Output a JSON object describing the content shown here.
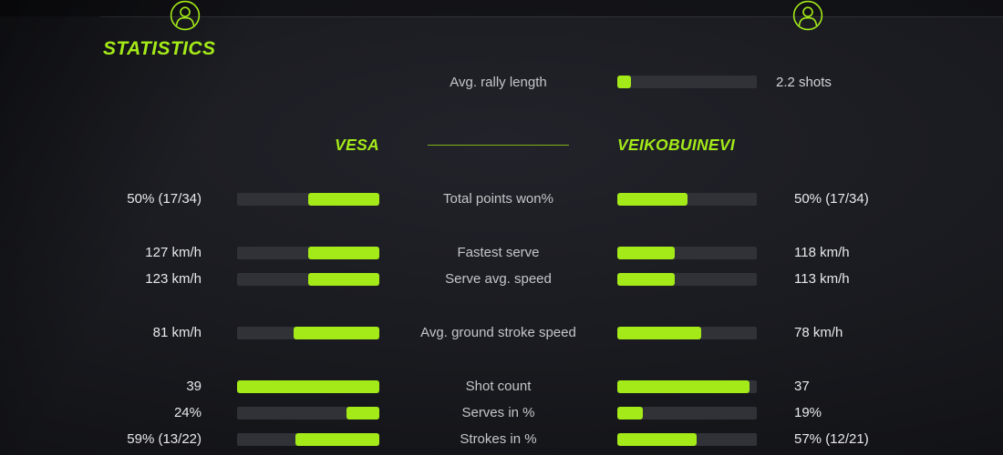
{
  "header": {
    "title": "STATISTICS"
  },
  "rally": {
    "label": "Avg. rally length",
    "value": "2.2 shots",
    "fill_pct": 10
  },
  "players": {
    "left": {
      "name": "VESA"
    },
    "right": {
      "name": "VEIKOBUINEVI"
    }
  },
  "stats": [
    {
      "label": "Total points won%",
      "left_value": "50% (17/34)",
      "right_value": "50% (17/34)",
      "left_pct": 50,
      "right_pct": 50
    },
    {
      "label": "Fastest serve",
      "left_value": "127 km/h",
      "right_value": "118 km/h",
      "left_pct": 50,
      "right_pct": 41
    },
    {
      "label": "Serve avg. speed",
      "left_value": "123 km/h",
      "right_value": "113 km/h",
      "left_pct": 50,
      "right_pct": 41
    },
    {
      "label": "Avg. ground stroke speed",
      "left_value": "81 km/h",
      "right_value": "78 km/h",
      "left_pct": 60,
      "right_pct": 60
    },
    {
      "label": "Shot count",
      "left_value": "39",
      "right_value": "37",
      "left_pct": 100,
      "right_pct": 95
    },
    {
      "label": "Serves in %",
      "left_value": "24%",
      "right_value": "19%",
      "left_pct": 23,
      "right_pct": 18
    },
    {
      "label": "Strokes in %",
      "left_value": "59% (13/22)",
      "right_value": "57% (12/21)",
      "left_pct": 59,
      "right_pct": 57
    }
  ],
  "colors": {
    "accent": "#a4ea18",
    "accent_dim": "#7fb116",
    "bar_track": "#313238",
    "background": "#17181d"
  },
  "icons": {
    "left_avatar": "person-icon",
    "right_avatar": "person-icon"
  }
}
